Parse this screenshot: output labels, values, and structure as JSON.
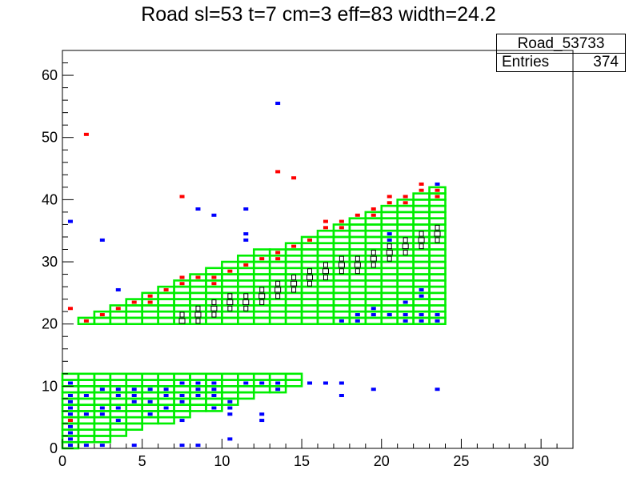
{
  "chart_data": {
    "type": "heatmap",
    "title": "Road sl=53 t=7 cm=3 eff=83 width=24.2",
    "xlabel": "",
    "ylabel": "",
    "xlim": [
      0,
      32
    ],
    "ylim": [
      0,
      64
    ],
    "grid": false,
    "x_ticks": [
      "0",
      "5",
      "10",
      "15",
      "20",
      "25",
      "30"
    ],
    "y_ticks": [
      "0",
      "10",
      "20",
      "30",
      "40",
      "50",
      "60"
    ],
    "stats_box": {
      "name": "Road_53733",
      "entries_label": "Entries",
      "entries_value": "374"
    },
    "colors": {
      "road": "#00ee00",
      "hit_blue": "#0000ff",
      "hit_red": "#ff0000",
      "box": "#000000"
    },
    "road_blocks": [
      {
        "x0": 1,
        "x1": 24,
        "ylow": 20,
        "y_top_start": 21,
        "y_top_end": 42
      },
      {
        "x0": 0,
        "x1": 15,
        "ylow_start": 0,
        "ylow_end": 10,
        "y_top": 12
      }
    ],
    "red_hits": [
      [
        0.5,
        22.5
      ],
      [
        1.5,
        20.5
      ],
      [
        1.5,
        50.5
      ],
      [
        2.5,
        21.5
      ],
      [
        3.5,
        22.5
      ],
      [
        4.5,
        23.5
      ],
      [
        5.5,
        24.5
      ],
      [
        5.5,
        23.5
      ],
      [
        6.5,
        25.5
      ],
      [
        7.5,
        26.5
      ],
      [
        7.5,
        27.5
      ],
      [
        7.5,
        40.5
      ],
      [
        8.5,
        27.5
      ],
      [
        9.5,
        27.5
      ],
      [
        9.5,
        26.5
      ],
      [
        10.5,
        28.5
      ],
      [
        11.5,
        29.5
      ],
      [
        12.5,
        30.5
      ],
      [
        13.5,
        31.5
      ],
      [
        13.5,
        30.5
      ],
      [
        13.5,
        44.5
      ],
      [
        14.5,
        32.5
      ],
      [
        14.5,
        43.5
      ],
      [
        15.5,
        33.5
      ],
      [
        16.5,
        36.5
      ],
      [
        16.5,
        35.5
      ],
      [
        17.5,
        36.5
      ],
      [
        17.5,
        35.5
      ],
      [
        18.5,
        37.5
      ],
      [
        19.5,
        38.5
      ],
      [
        19.5,
        37.5
      ],
      [
        20.5,
        40.5
      ],
      [
        20.5,
        39.5
      ],
      [
        21.5,
        40.5
      ],
      [
        21.5,
        39.5
      ],
      [
        22.5,
        42.5
      ],
      [
        22.5,
        41.5
      ],
      [
        23.5,
        41.5
      ],
      [
        23.5,
        40.5
      ],
      [
        0.5,
        4.5
      ]
    ],
    "blue_hits": [
      [
        0.5,
        0.5
      ],
      [
        0.5,
        1.5
      ],
      [
        0.5,
        2.5
      ],
      [
        0.5,
        3.5
      ],
      [
        0.5,
        4.5
      ],
      [
        0.5,
        5.5
      ],
      [
        0.5,
        6.5
      ],
      [
        0.5,
        7.5
      ],
      [
        0.5,
        8.5
      ],
      [
        0.5,
        10.5
      ],
      [
        0.5,
        36.5
      ],
      [
        1.5,
        0.5
      ],
      [
        1.5,
        5.5
      ],
      [
        1.5,
        8.5
      ],
      [
        2.5,
        0.5
      ],
      [
        2.5,
        5.5
      ],
      [
        2.5,
        6.5
      ],
      [
        2.5,
        9.5
      ],
      [
        2.5,
        33.5
      ],
      [
        3.5,
        4.5
      ],
      [
        3.5,
        6.5
      ],
      [
        3.5,
        8.5
      ],
      [
        3.5,
        9.5
      ],
      [
        3.5,
        25.5
      ],
      [
        4.5,
        7.5
      ],
      [
        4.5,
        8.5
      ],
      [
        4.5,
        9.5
      ],
      [
        4.5,
        0.5
      ],
      [
        5.5,
        5.5
      ],
      [
        5.5,
        7.5
      ],
      [
        5.5,
        9.5
      ],
      [
        6.5,
        6.5
      ],
      [
        6.5,
        8.5
      ],
      [
        6.5,
        9.5
      ],
      [
        7.5,
        4.5
      ],
      [
        7.5,
        7.5
      ],
      [
        7.5,
        8.5
      ],
      [
        7.5,
        10.5
      ],
      [
        7.5,
        0.5
      ],
      [
        8.5,
        8.5
      ],
      [
        8.5,
        9.5
      ],
      [
        8.5,
        10.5
      ],
      [
        8.5,
        38.5
      ],
      [
        8.5,
        0.5
      ],
      [
        9.5,
        6.5
      ],
      [
        9.5,
        8.5
      ],
      [
        9.5,
        9.5
      ],
      [
        9.5,
        10.5
      ],
      [
        9.5,
        37.5
      ],
      [
        10.5,
        6.5
      ],
      [
        10.5,
        7.5
      ],
      [
        10.5,
        1.5
      ],
      [
        10.5,
        5.5
      ],
      [
        11.5,
        10.5
      ],
      [
        11.5,
        38.5
      ],
      [
        11.5,
        34.5
      ],
      [
        11.5,
        33.5
      ],
      [
        12.5,
        10.5
      ],
      [
        12.5,
        4.5
      ],
      [
        12.5,
        5.5
      ],
      [
        13.5,
        10.5
      ],
      [
        13.5,
        9.5
      ],
      [
        13.5,
        55.5
      ],
      [
        15.5,
        10.5
      ],
      [
        16.5,
        10.5
      ],
      [
        17.5,
        10.5
      ],
      [
        17.5,
        8.5
      ],
      [
        17.5,
        20.5
      ],
      [
        18.5,
        20.5
      ],
      [
        18.5,
        21.5
      ],
      [
        19.5,
        9.5
      ],
      [
        19.5,
        21.5
      ],
      [
        19.5,
        22.5
      ],
      [
        20.5,
        21.5
      ],
      [
        20.5,
        34.5
      ],
      [
        20.5,
        33.5
      ],
      [
        21.5,
        20.5
      ],
      [
        21.5,
        21.5
      ],
      [
        21.5,
        23.5
      ],
      [
        22.5,
        20.5
      ],
      [
        22.5,
        21.5
      ],
      [
        22.5,
        24.5
      ],
      [
        22.5,
        25.5
      ],
      [
        23.5,
        20.5
      ],
      [
        23.5,
        21.5
      ],
      [
        23.5,
        42.5
      ],
      [
        23.5,
        9.5
      ]
    ]
  }
}
